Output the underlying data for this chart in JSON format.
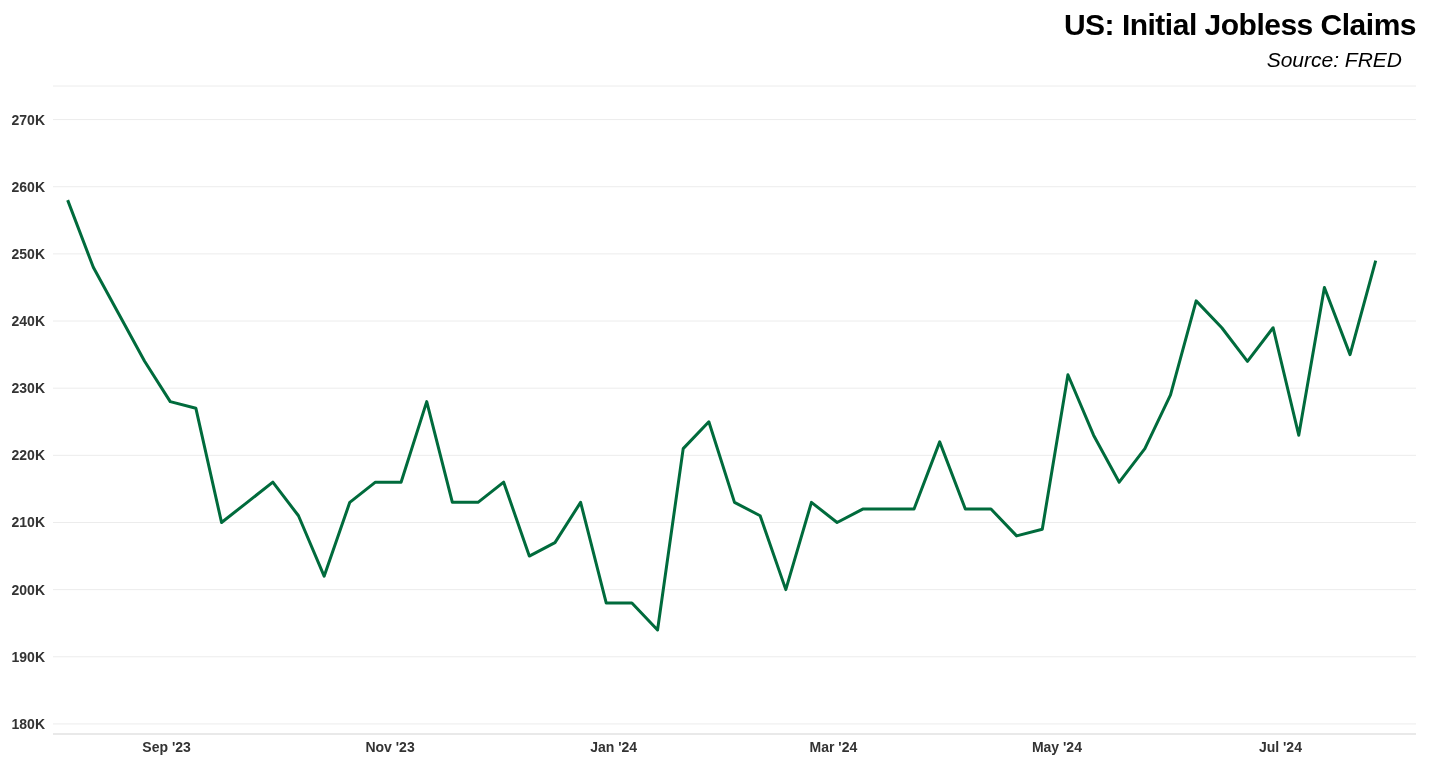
{
  "chart_data": {
    "type": "line",
    "title": "US: Initial Jobless Claims",
    "subtitle": "Source: FRED",
    "x": [
      "2023-08-05",
      "2023-08-12",
      "2023-08-19",
      "2023-08-26",
      "2023-09-02",
      "2023-09-09",
      "2023-09-16",
      "2023-09-23",
      "2023-09-30",
      "2023-10-07",
      "2023-10-14",
      "2023-10-21",
      "2023-10-28",
      "2023-11-04",
      "2023-11-11",
      "2023-11-18",
      "2023-11-25",
      "2023-12-02",
      "2023-12-09",
      "2023-12-16",
      "2023-12-23",
      "2023-12-30",
      "2024-01-06",
      "2024-01-13",
      "2024-01-20",
      "2024-01-27",
      "2024-02-03",
      "2024-02-10",
      "2024-02-17",
      "2024-02-24",
      "2024-03-02",
      "2024-03-09",
      "2024-03-16",
      "2024-03-23",
      "2024-03-30",
      "2024-04-06",
      "2024-04-13",
      "2024-04-20",
      "2024-04-27",
      "2024-05-04",
      "2024-05-11",
      "2024-05-18",
      "2024-05-25",
      "2024-06-01",
      "2024-06-08",
      "2024-06-15",
      "2024-06-22",
      "2024-06-29",
      "2024-07-06",
      "2024-07-13",
      "2024-07-20",
      "2024-07-27"
    ],
    "series": [
      {
        "color": "#006b3c",
        "values": [
          258000,
          248000,
          241000,
          234000,
          228000,
          227000,
          210000,
          213000,
          216000,
          211000,
          202000,
          213000,
          216000,
          216000,
          228000,
          213000,
          213000,
          216000,
          205000,
          207000,
          213000,
          198000,
          198000,
          194000,
          221000,
          225000,
          213000,
          211000,
          200000,
          213000,
          210000,
          212000,
          212000,
          212000,
          222000,
          212000,
          212000,
          208000,
          209000,
          232000,
          223000,
          216000,
          221000,
          229000,
          243000,
          239000,
          234000,
          239000,
          223000,
          245000,
          235000,
          249000
        ]
      }
    ],
    "xlim": [
      "2023-08-01",
      "2024-08-07"
    ],
    "xticks": [
      {
        "value": "2023-09-01",
        "label": "Sep '23"
      },
      {
        "value": "2023-11-01",
        "label": "Nov '23"
      },
      {
        "value": "2024-01-01",
        "label": "Jan '24"
      },
      {
        "value": "2024-03-01",
        "label": "Mar '24"
      },
      {
        "value": "2024-05-01",
        "label": "May '24"
      },
      {
        "value": "2024-07-01",
        "label": "Jul '24"
      }
    ],
    "ylim": [
      178500,
      275000
    ],
    "yticks": [
      {
        "value": 180000,
        "label": "180K"
      },
      {
        "value": 190000,
        "label": "190K"
      },
      {
        "value": 200000,
        "label": "200K"
      },
      {
        "value": 210000,
        "label": "210K"
      },
      {
        "value": 220000,
        "label": "220K"
      },
      {
        "value": 230000,
        "label": "230K"
      },
      {
        "value": 240000,
        "label": "240K"
      },
      {
        "value": 250000,
        "label": "250K"
      },
      {
        "value": 260000,
        "label": "260K"
      },
      {
        "value": 270000,
        "label": "270K"
      }
    ],
    "grid": "y",
    "marker": "none",
    "line_style": "solid"
  }
}
